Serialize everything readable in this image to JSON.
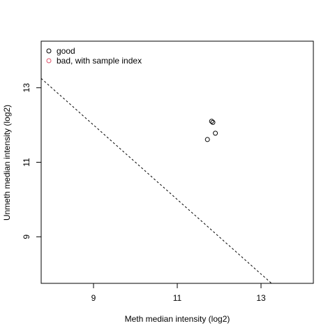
{
  "chart_data": {
    "type": "scatter",
    "title": "",
    "xlabel": "Meth median intensity (log2)",
    "ylabel": "Unmeth median intensity (log2)",
    "xlim": [
      7.75,
      14.25
    ],
    "ylim": [
      7.75,
      14.25
    ],
    "xticks": [
      9,
      11,
      13
    ],
    "yticks": [
      9,
      11,
      13
    ],
    "xtick_labels": [
      "9",
      "11",
      "13"
    ],
    "ytick_labels": [
      "9",
      "11",
      "13"
    ],
    "grid": false,
    "legend_position": "top-left",
    "legend": [
      {
        "label": "good",
        "color": "#000000",
        "marker": "open-circle"
      },
      {
        "label": "bad, with sample index",
        "color": "#DF536B",
        "marker": "open-circle"
      }
    ],
    "series": [
      {
        "name": "good",
        "color": "#000000",
        "points": [
          {
            "x": 11.82,
            "y": 12.1
          },
          {
            "x": 11.85,
            "y": 12.07
          },
          {
            "x": 11.91,
            "y": 11.78
          },
          {
            "x": 11.72,
            "y": 11.61
          }
        ]
      }
    ],
    "reference_line": {
      "style": "dashed",
      "color": "#000000",
      "intercept": 21,
      "slope": -1
    }
  }
}
